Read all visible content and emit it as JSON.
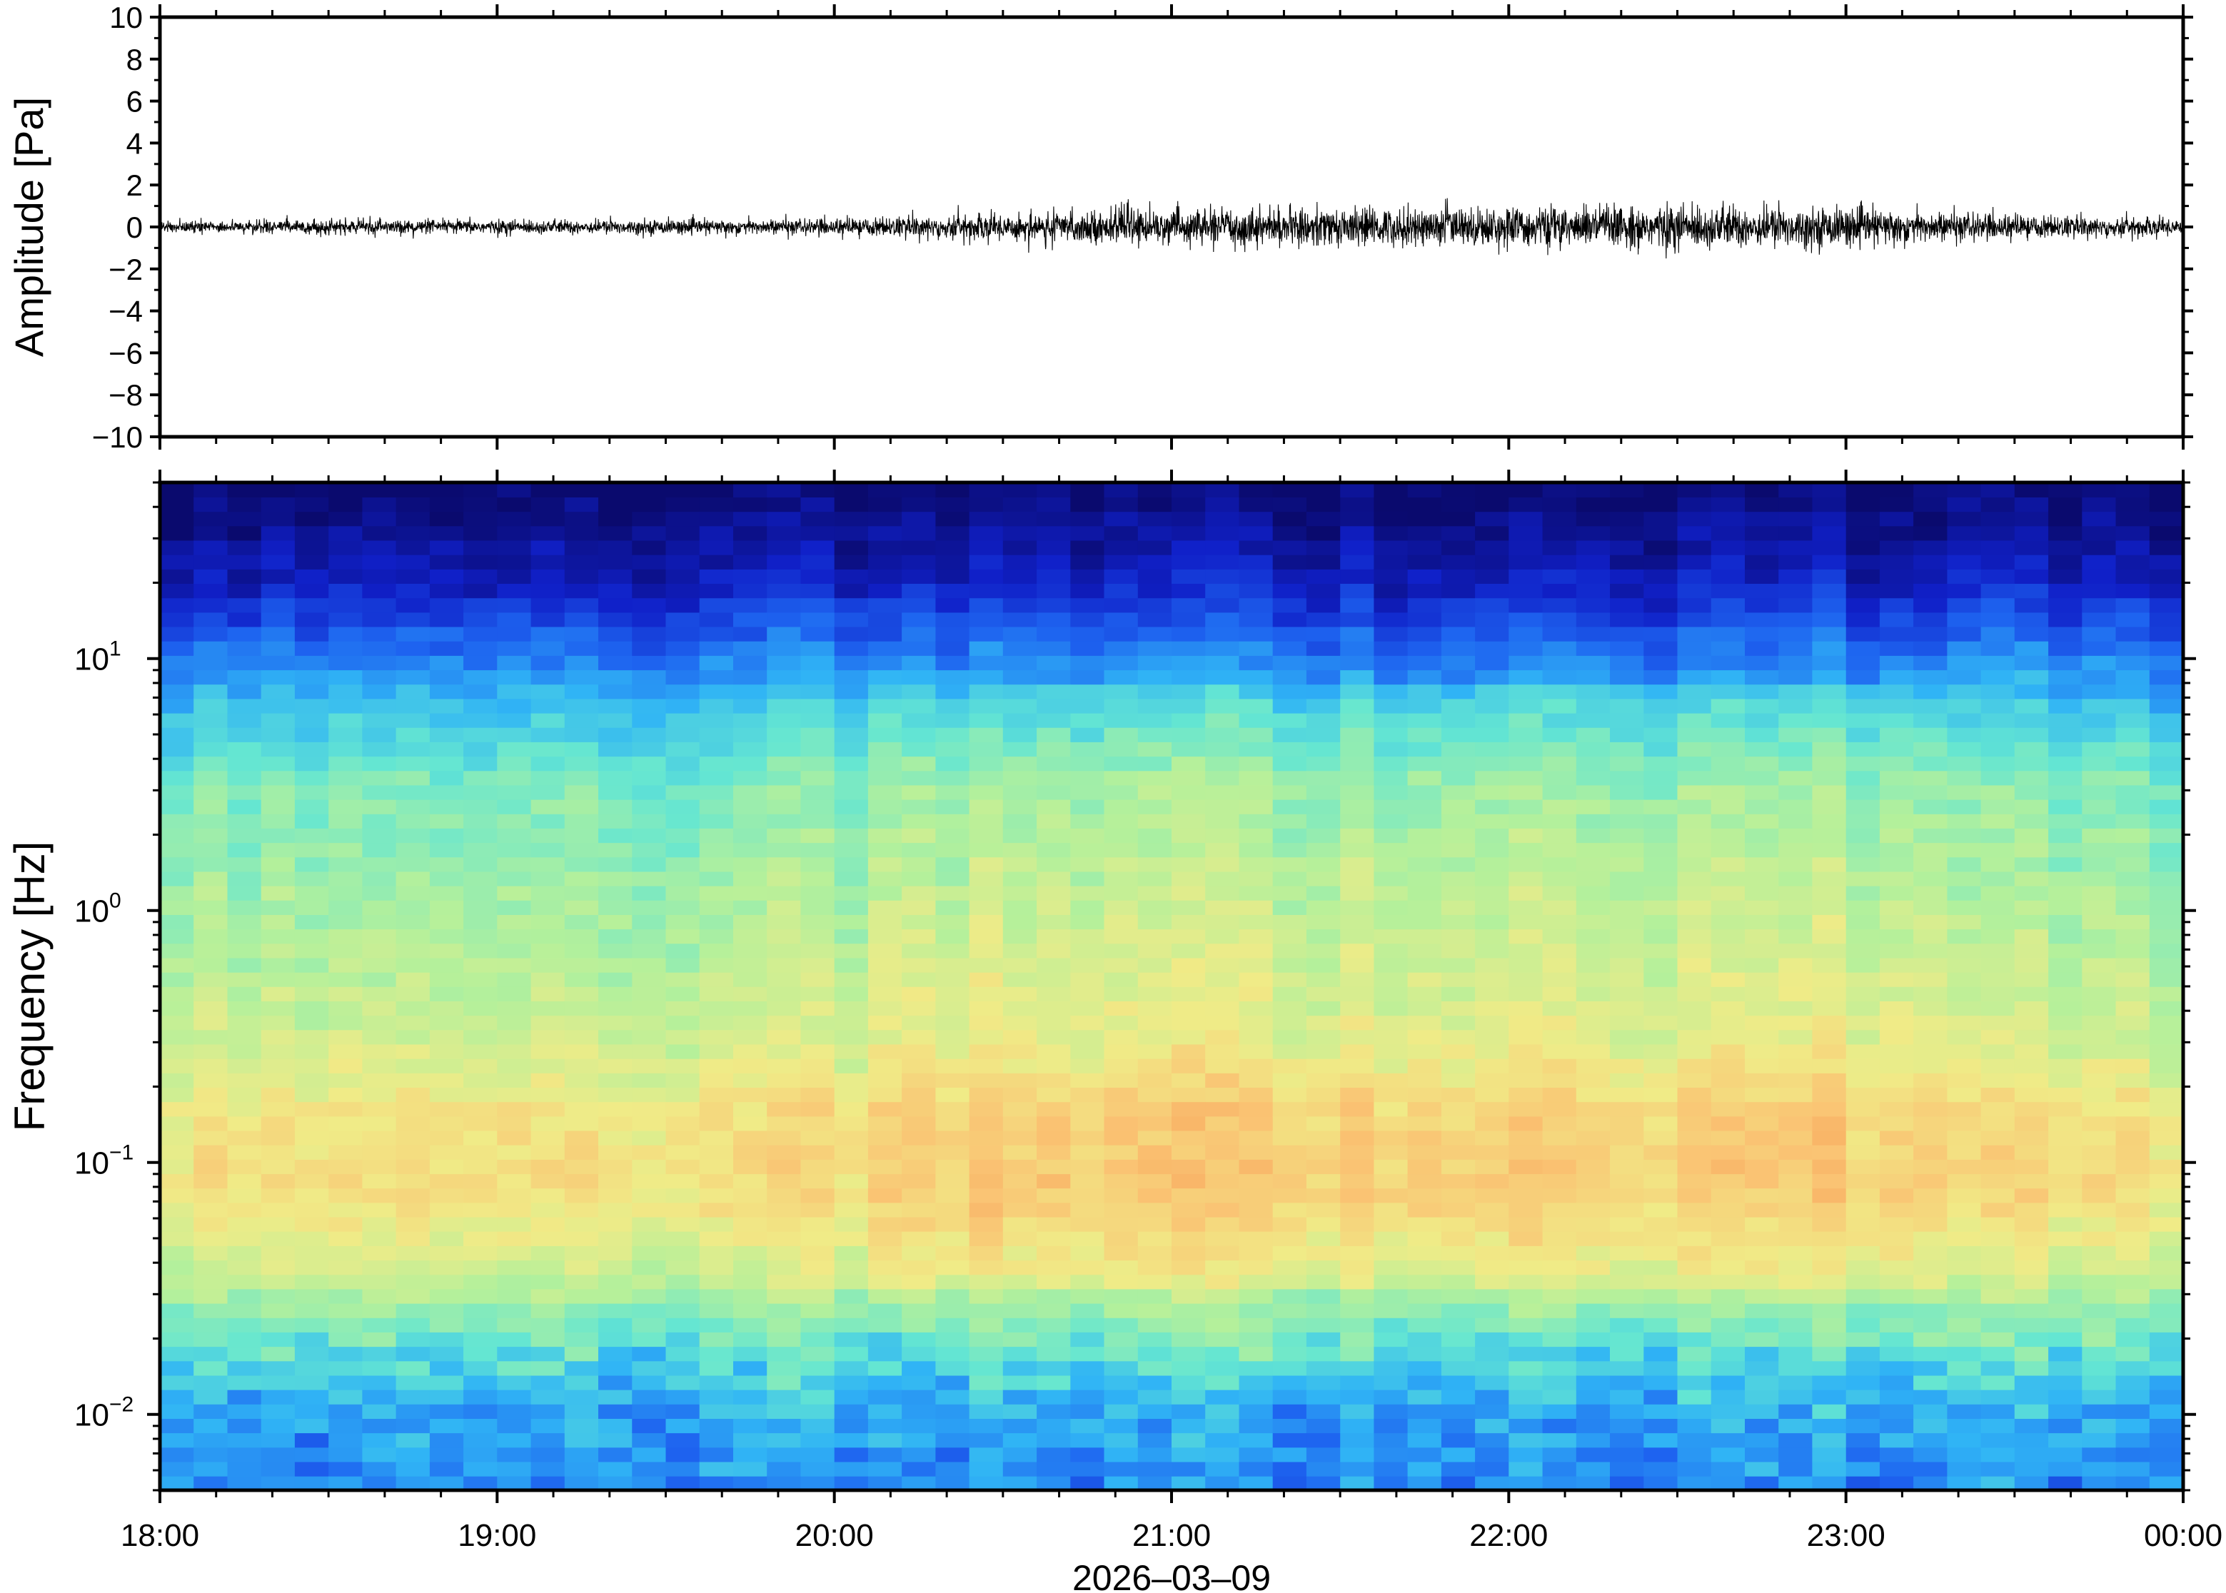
{
  "figure": {
    "date_label": "2026‒03‒09"
  },
  "chart_data": [
    {
      "type": "line",
      "ylabel": "Amplitude [Pa]",
      "ylim": [
        -10,
        10
      ],
      "yticks": [
        10,
        8,
        6,
        4,
        2,
        0,
        -2,
        -4,
        -6,
        -8,
        -10
      ],
      "ytick_labels": [
        "10",
        "8",
        "6",
        "4",
        "2",
        "0",
        "−2",
        "−4",
        "−6",
        "−8",
        "−10"
      ],
      "x_range": [
        "18:00",
        "00:00"
      ],
      "grid": false,
      "series_color": "#000000",
      "envelope": {
        "time_hours_after_1800": [
          0,
          0.5,
          1,
          1.5,
          2,
          2.5,
          3,
          3.5,
          4,
          4.5,
          5,
          5.5,
          6
        ],
        "half_amplitude_pa": [
          0.3,
          0.35,
          0.35,
          0.35,
          0.4,
          0.7,
          0.85,
          0.95,
          1.0,
          1.1,
          0.95,
          0.6,
          0.45
        ],
        "peak_pa": [
          0.5,
          0.6,
          0.55,
          0.6,
          0.7,
          1.2,
          1.4,
          1.3,
          1.5,
          1.5,
          1.3,
          0.9,
          0.7
        ]
      }
    },
    {
      "type": "heatmap",
      "ylabel": "Frequency [Hz]",
      "yscale": "log",
      "ylim": [
        0.005,
        50
      ],
      "ytick_values": [
        0.01,
        0.1,
        1,
        10
      ],
      "ytick_labels": [
        {
          "base": "10",
          "exp": "−2"
        },
        {
          "base": "10",
          "exp": "−1"
        },
        {
          "base": "10",
          "exp": "0"
        },
        {
          "base": "10",
          "exp": "1"
        }
      ],
      "xticks": [
        "18:00",
        "19:00",
        "20:00",
        "21:00",
        "22:00",
        "23:00",
        "00:00"
      ],
      "xlabel": "2026‒03‒09",
      "colormap": "jet-like",
      "colormap_stops": [
        "#0a0a6e",
        "#1020c8",
        "#1e64f0",
        "#30b4f5",
        "#64e6d2",
        "#b4f09b",
        "#f0eb87",
        "#fac373",
        "#f5914b"
      ],
      "time_columns": 60,
      "frequency_bins": 70,
      "level_profile_by_log10_freq": [
        {
          "log10f": -2.3,
          "level": 0.32
        },
        {
          "log10f": -2.0,
          "level": 0.36
        },
        {
          "log10f": -1.7,
          "level": 0.52
        },
        {
          "log10f": -1.4,
          "level": 0.7
        },
        {
          "log10f": -1.1,
          "level": 0.8
        },
        {
          "log10f": -0.8,
          "level": 0.78
        },
        {
          "log10f": -0.5,
          "level": 0.68
        },
        {
          "log10f": 0.0,
          "level": 0.62
        },
        {
          "log10f": 0.5,
          "level": 0.55
        },
        {
          "log10f": 0.8,
          "level": 0.42
        },
        {
          "log10f": 1.0,
          "level": 0.3
        },
        {
          "log10f": 1.3,
          "level": 0.12
        },
        {
          "log10f": 1.7,
          "level": 0.0
        }
      ]
    }
  ]
}
